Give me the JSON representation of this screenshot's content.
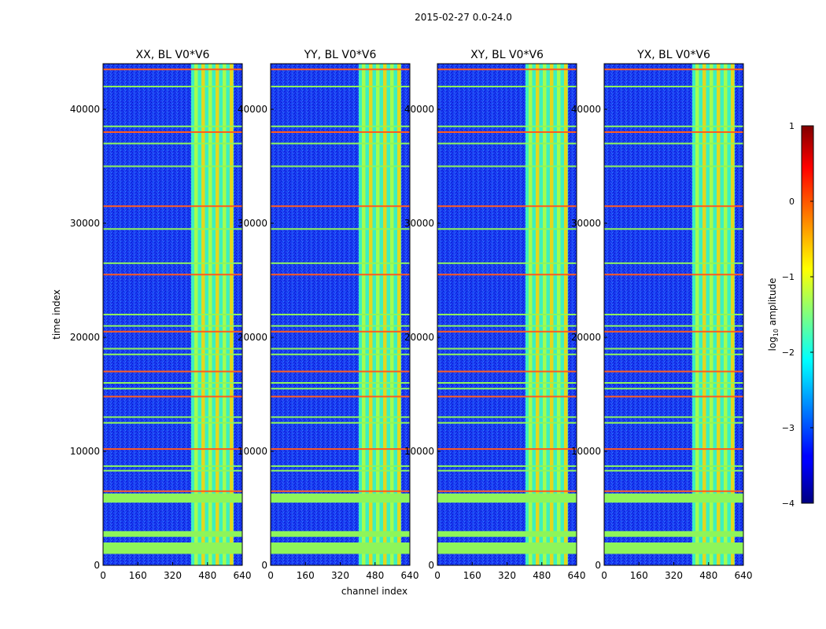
{
  "chart_data": {
    "type": "heatmap",
    "suptitle": "2015-02-27 0.0-24.0",
    "xlabel": "channel index",
    "ylabel": "time index",
    "xlim": [
      0,
      640
    ],
    "ylim": [
      0,
      44000
    ],
    "xticks": [
      0,
      160,
      320,
      480,
      640
    ],
    "yticks": [
      0,
      10000,
      20000,
      30000,
      40000
    ],
    "colorscale": "jet",
    "colorbar": {
      "label_prefix": "log",
      "label_sub": "10",
      "label_suffix": " amplitude",
      "range": [
        -4,
        1
      ],
      "ticks": [
        "1",
        "0",
        "−1",
        "−2",
        "−3",
        "−4"
      ]
    },
    "panels": [
      {
        "title": "XX, BL V0*V6"
      },
      {
        "title": "YY, BL V0*V6"
      },
      {
        "title": "XY, BL V0*V6"
      },
      {
        "title": "YX, BL V0*V6"
      }
    ],
    "bright_channel_band": [
      405,
      600
    ],
    "flagged_time_bands": [
      [
        1000,
        2000
      ],
      [
        2500,
        3000
      ],
      [
        5500,
        6300
      ]
    ],
    "flagged_time_rows": [
      6500,
      8300,
      8700,
      10200,
      12500,
      13000,
      14800,
      15500,
      16000,
      17000,
      18500,
      19000,
      20500,
      21000,
      22000,
      25500,
      26500,
      29500,
      31500,
      35000,
      37000,
      38000,
      38500,
      42000,
      43500
    ]
  }
}
